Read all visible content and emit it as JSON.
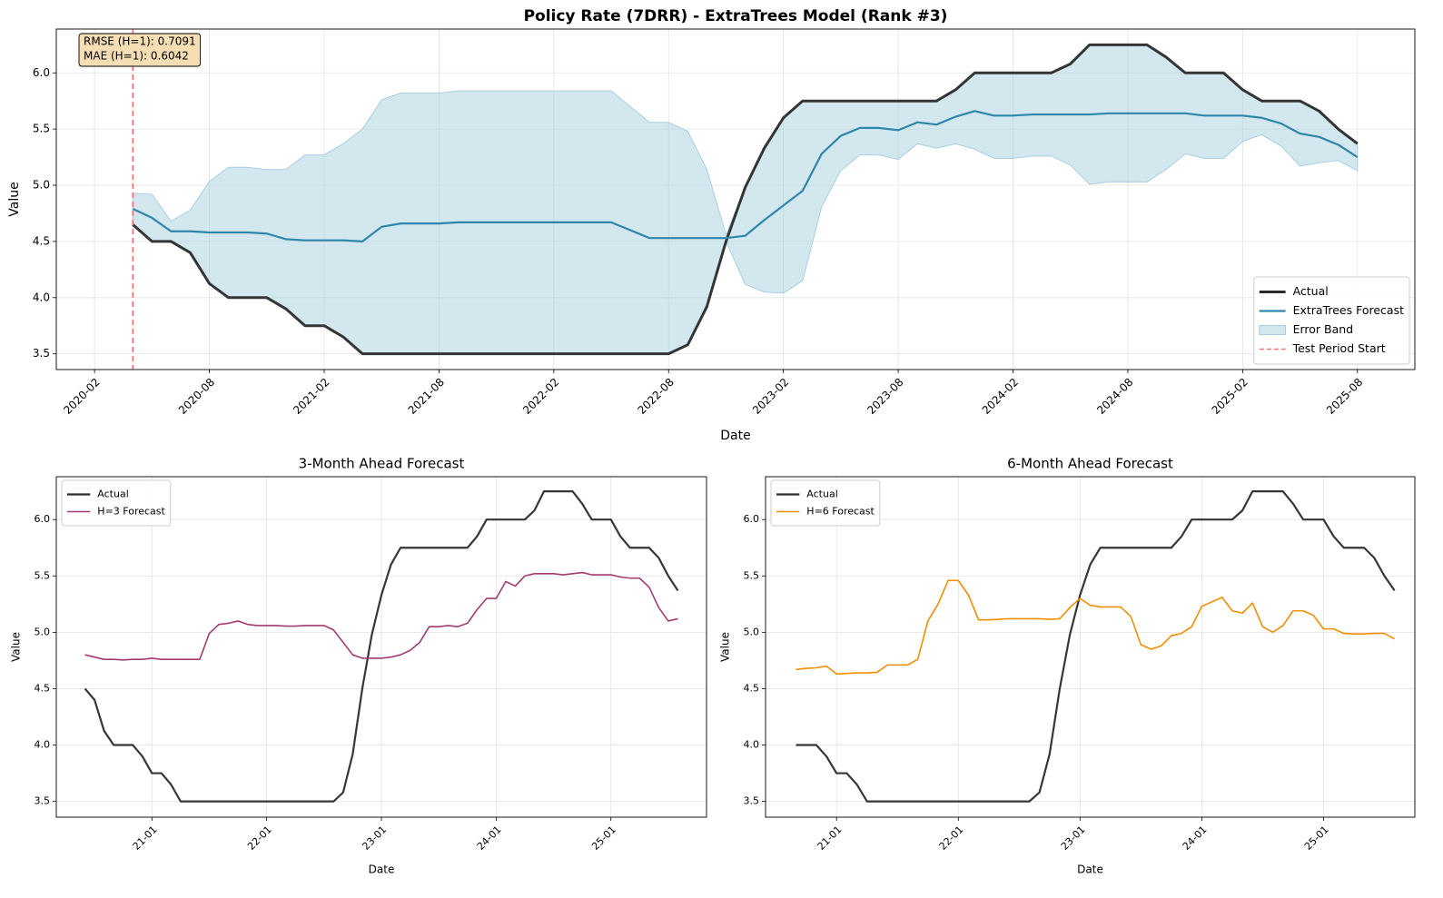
{
  "chart_data": [
    {
      "type": "line",
      "title": "Policy Rate (7DRR) - ExtraTrees Model (Rank #3)",
      "xlabel": "Date",
      "ylabel": "Value",
      "x": [
        "2020-04",
        "2020-05",
        "2020-06",
        "2020-07",
        "2020-08",
        "2020-09",
        "2020-10",
        "2020-11",
        "2020-12",
        "2021-01",
        "2021-02",
        "2021-03",
        "2021-04",
        "2021-05",
        "2021-06",
        "2021-07",
        "2021-08",
        "2021-09",
        "2021-10",
        "2021-11",
        "2021-12",
        "2022-01",
        "2022-02",
        "2022-03",
        "2022-04",
        "2022-05",
        "2022-06",
        "2022-07",
        "2022-08",
        "2022-09",
        "2022-10",
        "2022-11",
        "2022-12",
        "2023-01",
        "2023-02",
        "2023-03",
        "2023-04",
        "2023-05",
        "2023-06",
        "2023-07",
        "2023-08",
        "2023-09",
        "2023-10",
        "2023-11",
        "2023-12",
        "2024-01",
        "2024-02",
        "2024-03",
        "2024-04",
        "2024-05",
        "2024-06",
        "2024-07",
        "2024-08",
        "2024-09",
        "2024-10",
        "2024-11",
        "2024-12",
        "2025-01",
        "2025-02",
        "2025-03",
        "2025-04",
        "2025-05",
        "2025-06",
        "2025-07",
        "2025-08"
      ],
      "series": [
        {
          "name": "Actual",
          "color": "#2b2b2b",
          "values": [
            4.65,
            4.5,
            4.5,
            4.4,
            4.125,
            4.0,
            4.0,
            4.0,
            3.9,
            3.75,
            3.75,
            3.65,
            3.5,
            3.5,
            3.5,
            3.5,
            3.5,
            3.5,
            3.5,
            3.5,
            3.5,
            3.5,
            3.5,
            3.5,
            3.5,
            3.5,
            3.5,
            3.5,
            3.5,
            3.58,
            3.92,
            4.5,
            4.98,
            5.33,
            5.6,
            5.75,
            5.75,
            5.75,
            5.75,
            5.75,
            5.75,
            5.75,
            5.75,
            5.85,
            6.0,
            6.0,
            6.0,
            6.0,
            6.0,
            6.08,
            6.25,
            6.25,
            6.25,
            6.25,
            6.14,
            6.0,
            6.0,
            6.0,
            5.85,
            5.75,
            5.75,
            5.75,
            5.66,
            5.5,
            5.37
          ]
        },
        {
          "name": "ExtraTrees Forecast",
          "color": "#2e86ab",
          "values": [
            4.79,
            4.71,
            4.59,
            4.59,
            4.58,
            4.58,
            4.58,
            4.57,
            4.52,
            4.51,
            4.51,
            4.51,
            4.5,
            4.63,
            4.66,
            4.66,
            4.66,
            4.67,
            4.67,
            4.67,
            4.67,
            4.67,
            4.67,
            4.67,
            4.67,
            4.67,
            4.6,
            4.53,
            4.53,
            4.53,
            4.53,
            4.53,
            4.55,
            4.69,
            4.82,
            4.95,
            5.28,
            5.44,
            5.51,
            5.51,
            5.49,
            5.56,
            5.54,
            5.61,
            5.66,
            5.62,
            5.62,
            5.63,
            5.63,
            5.63,
            5.63,
            5.64,
            5.64,
            5.64,
            5.64,
            5.64,
            5.62,
            5.62,
            5.62,
            5.6,
            5.55,
            5.46,
            5.43,
            5.36,
            5.25
          ]
        }
      ],
      "band": {
        "name": "Error Band",
        "color": "#a8cfe0",
        "lower": [
          4.65,
          4.5,
          4.5,
          4.4,
          4.125,
          4.0,
          4.0,
          4.0,
          3.9,
          3.75,
          3.75,
          3.65,
          3.5,
          3.5,
          3.5,
          3.5,
          3.5,
          3.5,
          3.5,
          3.5,
          3.5,
          3.5,
          3.5,
          3.5,
          3.5,
          3.5,
          3.5,
          3.5,
          3.5,
          3.58,
          3.92,
          4.5,
          4.12,
          4.05,
          4.04,
          4.15,
          4.81,
          5.13,
          5.27,
          5.27,
          5.23,
          5.37,
          5.33,
          5.37,
          5.32,
          5.24,
          5.24,
          5.26,
          5.26,
          5.18,
          5.01,
          5.03,
          5.03,
          5.03,
          5.14,
          5.28,
          5.24,
          5.24,
          5.39,
          5.45,
          5.35,
          5.17,
          5.2,
          5.22,
          5.13
        ],
        "upper": [
          4.93,
          4.92,
          4.68,
          4.78,
          5.035,
          5.16,
          5.16,
          5.14,
          5.14,
          5.27,
          5.27,
          5.37,
          5.5,
          5.76,
          5.82,
          5.82,
          5.82,
          5.84,
          5.84,
          5.84,
          5.84,
          5.84,
          5.84,
          5.84,
          5.84,
          5.84,
          5.7,
          5.56,
          5.56,
          5.48,
          5.14,
          4.56,
          4.98,
          5.33,
          5.6,
          5.75,
          5.75,
          5.75,
          5.75,
          5.75,
          5.75,
          5.75,
          5.75,
          5.85,
          6.0,
          6.0,
          6.0,
          6.0,
          6.0,
          6.08,
          6.25,
          6.25,
          6.25,
          6.25,
          6.14,
          6.0,
          6.0,
          6.0,
          5.85,
          5.75,
          5.75,
          5.75,
          5.66,
          5.5,
          5.37
        ]
      },
      "vline": {
        "name": "Test Period Start",
        "x": "2020-04",
        "color": "#ff6b6b"
      },
      "annotations": [
        "RMSE (H=1): 0.7091",
        "MAE (H=1): 0.6042"
      ],
      "xlim": [
        "2019-12",
        "2025-11"
      ],
      "ylim": [
        3.36,
        6.39
      ],
      "xticks": [
        "2020-02",
        "2020-08",
        "2021-02",
        "2021-08",
        "2022-02",
        "2022-08",
        "2023-02",
        "2023-08",
        "2024-02",
        "2024-08",
        "2025-02",
        "2025-08"
      ],
      "yticks": [
        3.5,
        {
          "value": 4,
          "label": "4.0"
        },
        4.5,
        {
          "value": 5,
          "label": "5.0"
        },
        5.5,
        {
          "value": 6,
          "label": "6.0"
        }
      ],
      "grid": true,
      "legend": "lower right"
    },
    {
      "type": "line",
      "title": "3-Month Ahead Forecast",
      "xlabel": "Date",
      "ylabel": "Value",
      "x": [
        "2020-06",
        "2020-07",
        "2020-08",
        "2020-09",
        "2020-10",
        "2020-11",
        "2020-12",
        "2021-01",
        "2021-02",
        "2021-03",
        "2021-04",
        "2021-05",
        "2021-06",
        "2021-07",
        "2021-08",
        "2021-09",
        "2021-10",
        "2021-11",
        "2021-12",
        "2022-01",
        "2022-02",
        "2022-03",
        "2022-04",
        "2022-05",
        "2022-06",
        "2022-07",
        "2022-08",
        "2022-09",
        "2022-10",
        "2022-11",
        "2022-12",
        "2023-01",
        "2023-02",
        "2023-03",
        "2023-04",
        "2023-05",
        "2023-06",
        "2023-07",
        "2023-08",
        "2023-09",
        "2023-10",
        "2023-11",
        "2023-12",
        "2024-01",
        "2024-02",
        "2024-03",
        "2024-04",
        "2024-05",
        "2024-06",
        "2024-07",
        "2024-08",
        "2024-09",
        "2024-10",
        "2024-11",
        "2024-12",
        "2025-01",
        "2025-02",
        "2025-03",
        "2025-04",
        "2025-05",
        "2025-06",
        "2025-07",
        "2025-08"
      ],
      "series": [
        {
          "name": "Actual",
          "color": "#2b2b2b",
          "values": [
            4.5,
            4.4,
            4.125,
            4.0,
            4.0,
            4.0,
            3.9,
            3.75,
            3.75,
            3.65,
            3.5,
            3.5,
            3.5,
            3.5,
            3.5,
            3.5,
            3.5,
            3.5,
            3.5,
            3.5,
            3.5,
            3.5,
            3.5,
            3.5,
            3.5,
            3.5,
            3.5,
            3.58,
            3.92,
            4.5,
            4.98,
            5.33,
            5.6,
            5.75,
            5.75,
            5.75,
            5.75,
            5.75,
            5.75,
            5.75,
            5.75,
            5.85,
            6.0,
            6.0,
            6.0,
            6.0,
            6.0,
            6.08,
            6.25,
            6.25,
            6.25,
            6.25,
            6.14,
            6.0,
            6.0,
            6.0,
            5.85,
            5.75,
            5.75,
            5.75,
            5.66,
            5.5,
            5.37
          ]
        },
        {
          "name": "H=3 Forecast",
          "color": "#a23b72",
          "values": [
            4.8,
            4.78,
            4.76,
            4.76,
            4.755,
            4.76,
            4.76,
            4.77,
            4.76,
            4.76,
            4.76,
            4.76,
            4.76,
            4.99,
            5.07,
            5.08,
            5.1,
            5.07,
            5.06,
            5.06,
            5.06,
            5.055,
            5.055,
            5.06,
            5.06,
            5.06,
            5.02,
            4.91,
            4.8,
            4.77,
            4.77,
            4.77,
            4.78,
            4.8,
            4.84,
            4.91,
            5.05,
            5.05,
            5.06,
            5.05,
            5.08,
            5.2,
            5.3,
            5.3,
            5.45,
            5.41,
            5.5,
            5.52,
            5.52,
            5.52,
            5.51,
            5.52,
            5.53,
            5.51,
            5.51,
            5.51,
            5.49,
            5.48,
            5.48,
            5.4,
            5.22,
            5.1,
            5.12
          ]
        }
      ],
      "xlim": [
        "2020-03",
        "2025-11"
      ],
      "ylim": [
        3.36,
        6.38
      ],
      "xticks": [
        {
          "value": "2021-01",
          "label": "21-01"
        },
        {
          "value": "2022-01",
          "label": "22-01"
        },
        {
          "value": "2023-01",
          "label": "23-01"
        },
        {
          "value": "2024-01",
          "label": "24-01"
        },
        {
          "value": "2025-01",
          "label": "25-01"
        }
      ],
      "yticks": [
        3.5,
        {
          "value": 4,
          "label": "4.0"
        },
        4.5,
        {
          "value": 5,
          "label": "5.0"
        },
        5.5,
        {
          "value": 6,
          "label": "6.0"
        }
      ],
      "grid": true,
      "legend": "upper left"
    },
    {
      "type": "line",
      "title": "6-Month Ahead Forecast",
      "xlabel": "Date",
      "ylabel": "Value",
      "x": [
        "2020-09",
        "2020-10",
        "2020-11",
        "2020-12",
        "2021-01",
        "2021-02",
        "2021-03",
        "2021-04",
        "2021-05",
        "2021-06",
        "2021-07",
        "2021-08",
        "2021-09",
        "2021-10",
        "2021-11",
        "2021-12",
        "2022-01",
        "2022-02",
        "2022-03",
        "2022-04",
        "2022-05",
        "2022-06",
        "2022-07",
        "2022-08",
        "2022-09",
        "2022-10",
        "2022-11",
        "2022-12",
        "2023-01",
        "2023-02",
        "2023-03",
        "2023-04",
        "2023-05",
        "2023-06",
        "2023-07",
        "2023-08",
        "2023-09",
        "2023-10",
        "2023-11",
        "2023-12",
        "2024-01",
        "2024-02",
        "2024-03",
        "2024-04",
        "2024-05",
        "2024-06",
        "2024-07",
        "2024-08",
        "2024-09",
        "2024-10",
        "2024-11",
        "2024-12",
        "2025-01",
        "2025-02",
        "2025-03",
        "2025-04",
        "2025-05",
        "2025-06",
        "2025-07",
        "2025-08"
      ],
      "series": [
        {
          "name": "Actual",
          "color": "#2b2b2b",
          "values": [
            4.0,
            4.0,
            4.0,
            3.9,
            3.75,
            3.75,
            3.65,
            3.5,
            3.5,
            3.5,
            3.5,
            3.5,
            3.5,
            3.5,
            3.5,
            3.5,
            3.5,
            3.5,
            3.5,
            3.5,
            3.5,
            3.5,
            3.5,
            3.5,
            3.58,
            3.92,
            4.5,
            4.98,
            5.33,
            5.6,
            5.75,
            5.75,
            5.75,
            5.75,
            5.75,
            5.75,
            5.75,
            5.75,
            5.85,
            6.0,
            6.0,
            6.0,
            6.0,
            6.0,
            6.08,
            6.25,
            6.25,
            6.25,
            6.25,
            6.14,
            6.0,
            6.0,
            6.0,
            5.85,
            5.75,
            5.75,
            5.75,
            5.66,
            5.5,
            5.37
          ]
        },
        {
          "name": "H=6 Forecast",
          "color": "#f18f01",
          "values": [
            4.67,
            4.68,
            4.685,
            4.7,
            4.63,
            4.635,
            4.64,
            4.64,
            4.645,
            4.71,
            4.71,
            4.71,
            4.76,
            5.1,
            5.25,
            5.46,
            5.46,
            5.33,
            5.11,
            5.11,
            5.115,
            5.12,
            5.12,
            5.12,
            5.12,
            5.115,
            5.12,
            5.22,
            5.3,
            5.24,
            5.225,
            5.225,
            5.225,
            5.14,
            4.89,
            4.85,
            4.88,
            4.97,
            4.99,
            5.05,
            5.23,
            5.27,
            5.31,
            5.19,
            5.17,
            5.26,
            5.05,
            5.0,
            5.06,
            5.19,
            5.19,
            5.15,
            5.03,
            5.03,
            4.99,
            4.985,
            4.985,
            4.99,
            4.99,
            4.94
          ]
        }
      ],
      "xlim": [
        "2020-06",
        "2025-10"
      ],
      "ylim": [
        3.36,
        6.38
      ],
      "xticks": [
        {
          "value": "2021-01",
          "label": "21-01"
        },
        {
          "value": "2022-01",
          "label": "22-01"
        },
        {
          "value": "2023-01",
          "label": "23-01"
        },
        {
          "value": "2024-01",
          "label": "24-01"
        },
        {
          "value": "2025-01",
          "label": "25-01"
        }
      ],
      "yticks": [
        3.5,
        {
          "value": 4,
          "label": "4.0"
        },
        4.5,
        {
          "value": 5,
          "label": "5.0"
        },
        5.5,
        {
          "value": 6,
          "label": "6.0"
        }
      ],
      "grid": true,
      "legend": "upper left"
    }
  ]
}
